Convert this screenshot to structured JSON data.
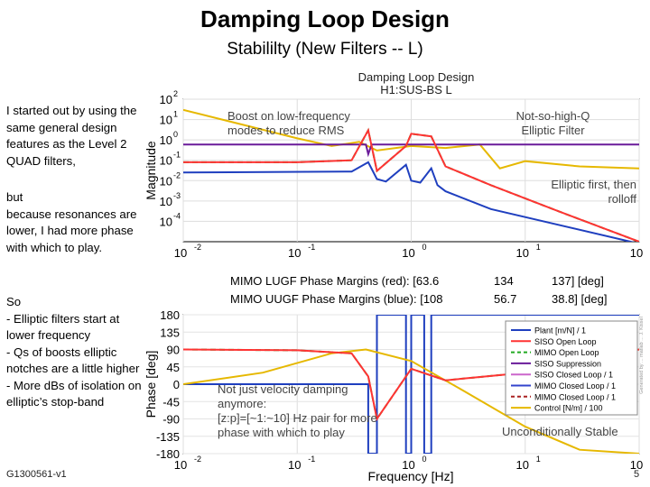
{
  "slide": {
    "title": "Damping Loop Design",
    "subtitle": "Stabililty (New Filters -- L)",
    "left_text_1": "I started out by using the same general design features as the Level 2 QUAD filters,",
    "left_text_2": "but\nbecause resonances are lower, I had more phase with which to play.",
    "left_text_3": "So\n- Elliptic filters start at lower frequency\n- Qs of boosts elliptic notches are a little higher\n- More dBs of isolation on elliptic’s stop-band",
    "note_boost": "Boost on low-frequency modes to reduce RMS",
    "note_elliptic": "Not-so-high-Q Elliptic Filter",
    "note_rolloff": "Elliptic first, then rolloff",
    "note_velocity": "Not just velocity damping anymore:\n[z:p]=[~1:~10] Hz pair for more phase with which to play",
    "note_stable": "Unconditionally Stable",
    "footer_id": "G1300561-v1",
    "slide_number": "5"
  },
  "chart_data": {
    "type": "line",
    "figure_title": "Damping Loop Design",
    "figure_subtitle": "H1:SUS-BS L",
    "xlabel": "Frequency [Hz]",
    "x_scale": "log",
    "xlim": [
      0.01,
      100
    ],
    "x_ticks": [
      "10",
      "10",
      "10",
      "10",
      "10"
    ],
    "x_tick_exponents": [
      "-2",
      "-1",
      "0",
      "1",
      "2"
    ],
    "magnitude": {
      "ylabel": "Magnitude",
      "y_scale": "log",
      "ylim": [
        1e-05,
        100
      ],
      "y_ticks": [
        "10",
        "10",
        "10",
        "10",
        "10",
        "10",
        "10"
      ],
      "y_tick_exponents": [
        "2",
        "1",
        "0",
        "-1",
        "-2",
        "-3",
        "-4"
      ],
      "series": [
        {
          "name": "Plant [m/N] / 1",
          "color": "#1f3fbf",
          "x": [
            0.01,
            0.3,
            0.42,
            0.5,
            0.6,
            0.9,
            1.0,
            1.2,
            1.5,
            1.7,
            2,
            5,
            100
          ],
          "y": [
            0.025,
            0.028,
            0.08,
            0.012,
            0.009,
            0.06,
            0.01,
            0.008,
            0.04,
            0.006,
            0.003,
            0.0004,
            8e-06
          ]
        },
        {
          "name": "Control [N/m] / 100",
          "color": "#e6b800",
          "x": [
            0.01,
            0.1,
            0.2,
            0.35,
            0.5,
            1.0,
            2,
            4,
            6,
            10,
            30,
            100
          ],
          "y": [
            30,
            1.2,
            0.5,
            0.8,
            0.3,
            0.5,
            0.4,
            0.6,
            0.04,
            0.09,
            0.05,
            0.04
          ]
        },
        {
          "name": "SISO Suppression",
          "color": "#6a1b9a",
          "x": [
            0.01,
            0.4,
            0.42,
            0.45,
            1.0,
            1.5,
            100
          ],
          "y": [
            0.6,
            0.6,
            0.2,
            0.6,
            0.6,
            0.6,
            0.6
          ]
        },
        {
          "name": "MIMO Open Loop",
          "color": "#22aa22",
          "x": [
            0.01,
            0.1,
            0.3,
            0.42,
            0.5,
            0.9,
            1.0,
            1.5,
            2,
            5,
            20,
            100
          ],
          "y": [
            0.08,
            0.08,
            0.1,
            3,
            0.03,
            0.5,
            2,
            1.5,
            0.05,
            0.006,
            0.0003,
            1e-05
          ]
        },
        {
          "name": "SISO Open Loop",
          "color": "#ff3333",
          "x": [
            0.01,
            0.1,
            0.3,
            0.42,
            0.5,
            0.9,
            1.0,
            1.5,
            2,
            5,
            20,
            100
          ],
          "y": [
            0.08,
            0.08,
            0.1,
            3,
            0.03,
            0.5,
            2,
            1.5,
            0.05,
            0.006,
            0.0003,
            1e-05
          ]
        }
      ]
    },
    "phase": {
      "ylabel": "Phase [deg]",
      "ylim": [
        -180,
        180
      ],
      "y_ticks": [
        "180",
        "135",
        "90",
        "45",
        "0",
        "-45",
        "-90",
        "-135",
        "-180"
      ],
      "margins_red_label": "MIMO LUGF Phase Margins (red): [63.6",
      "margins_red_values": [
        "134",
        "137] [deg]"
      ],
      "margins_blue_label": "MIMO UUGF Phase Margins (blue): [108",
      "margins_blue_values": [
        "56.7",
        "38.8] [deg]"
      ],
      "series": [
        {
          "name": "Plant [m/N] / 1",
          "color": "#1f3fbf",
          "x": [
            0.01,
            0.42,
            0.42,
            0.5,
            0.5,
            0.9,
            0.9,
            1.0,
            1.0,
            1.3,
            1.3,
            1.5,
            1.5,
            100
          ],
          "y": [
            0,
            0,
            -180,
            -180,
            180,
            180,
            -180,
            -180,
            180,
            180,
            -180,
            -180,
            180,
            180
          ]
        },
        {
          "name": "Control [N/m] / 100",
          "color": "#e6b800",
          "x": [
            0.01,
            0.05,
            0.2,
            0.4,
            1.0,
            3,
            10,
            30,
            100
          ],
          "y": [
            0,
            30,
            80,
            90,
            60,
            -20,
            -110,
            -170,
            -180
          ]
        },
        {
          "name": "MIMO Open Loop",
          "color": "#22aa22",
          "x": [
            0.01,
            0.1,
            0.3,
            0.42,
            0.5,
            1.0,
            2,
            10,
            100
          ],
          "y": [
            90,
            88,
            80,
            20,
            -90,
            40,
            10,
            30,
            90
          ]
        },
        {
          "name": "SISO Open Loop",
          "color": "#ff3333",
          "x": [
            0.01,
            0.1,
            0.3,
            0.42,
            0.5,
            1.0,
            2,
            10,
            100
          ],
          "y": [
            90,
            88,
            80,
            20,
            -90,
            40,
            10,
            30,
            90
          ]
        }
      ]
    },
    "legend": {
      "placement": "right",
      "entries": [
        {
          "name": "Plant [m/N] / 1",
          "color": "#1f3fbf",
          "dash": "solid"
        },
        {
          "name": "SISO Open Loop",
          "color": "#ff3333",
          "dash": "solid"
        },
        {
          "name": "MIMO Open Loop",
          "color": "#22aa22",
          "dash": "dashed"
        },
        {
          "name": "SISO Suppression",
          "color": "#6a1b9a",
          "dash": "solid"
        },
        {
          "name": "SISO Closed Loop / 1",
          "color": "#cc66cc",
          "dash": "solid"
        },
        {
          "name": "MIMO Closed Loop / 1",
          "color": "#3344cc",
          "dash": "solid"
        },
        {
          "name": "MIMO Closed Loop / 1",
          "color": "#aa2222",
          "dash": "dashed"
        },
        {
          "name": "Control [N/m] / 100",
          "color": "#e6b800",
          "dash": "solid"
        }
      ]
    },
    "side_stamp": "Generated by ... matlab ... J. Kissel"
  }
}
